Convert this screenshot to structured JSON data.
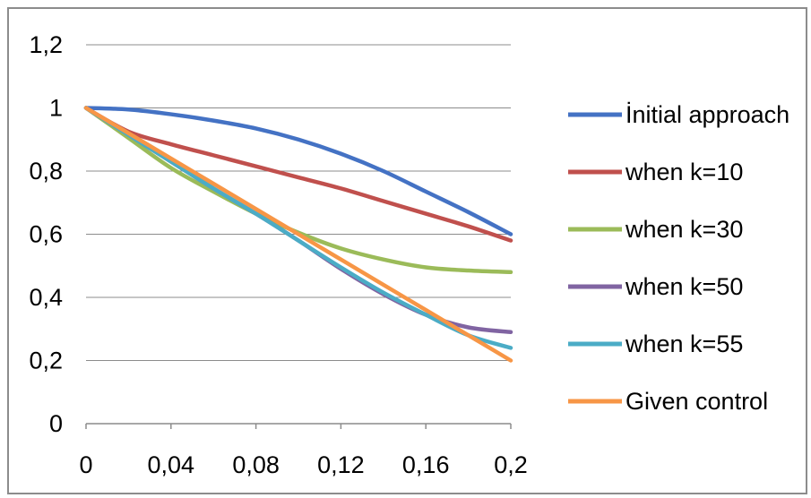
{
  "chart_data": {
    "type": "line",
    "title": "",
    "xlabel": "",
    "ylabel": "",
    "xlim": [
      0,
      0.2
    ],
    "ylim": [
      0,
      1.2
    ],
    "x_ticks": [
      "0",
      "0,04",
      "0,08",
      "0,12",
      "0,16",
      "0,2"
    ],
    "y_ticks": [
      "0",
      "0,2",
      "0,4",
      "0,6",
      "0,8",
      "1",
      "1,2"
    ],
    "grid": "horizontal",
    "legend_position": "right",
    "x": [
      0,
      0.02,
      0.04,
      0.06,
      0.08,
      0.1,
      0.12,
      0.14,
      0.16,
      0.18,
      0.2
    ],
    "series": [
      {
        "name": "İnitial approach",
        "color": "#4472c4",
        "values": [
          1.0,
          0.995,
          0.98,
          0.96,
          0.935,
          0.9,
          0.855,
          0.8,
          0.735,
          0.67,
          0.6
        ]
      },
      {
        "name": "when k=10",
        "color": "#c0504d",
        "values": [
          1.0,
          0.925,
          0.885,
          0.85,
          0.815,
          0.78,
          0.745,
          0.705,
          0.665,
          0.625,
          0.58
        ]
      },
      {
        "name": "when k=30",
        "color": "#9bbb59",
        "values": [
          1.0,
          0.905,
          0.81,
          0.735,
          0.665,
          0.605,
          0.555,
          0.52,
          0.495,
          0.485,
          0.48
        ]
      },
      {
        "name": "when k=50",
        "color": "#8064a2",
        "values": [
          1.0,
          0.915,
          0.83,
          0.745,
          0.665,
          0.58,
          0.49,
          0.41,
          0.345,
          0.305,
          0.29
        ]
      },
      {
        "name": "when k=55",
        "color": "#4bacc6",
        "values": [
          1.0,
          0.915,
          0.83,
          0.745,
          0.665,
          0.58,
          0.495,
          0.415,
          0.345,
          0.28,
          0.24
        ]
      },
      {
        "name": "Given control",
        "color": "#f79646",
        "values": [
          1.0,
          0.92,
          0.84,
          0.76,
          0.68,
          0.6,
          0.52,
          0.44,
          0.36,
          0.28,
          0.2
        ]
      }
    ]
  }
}
